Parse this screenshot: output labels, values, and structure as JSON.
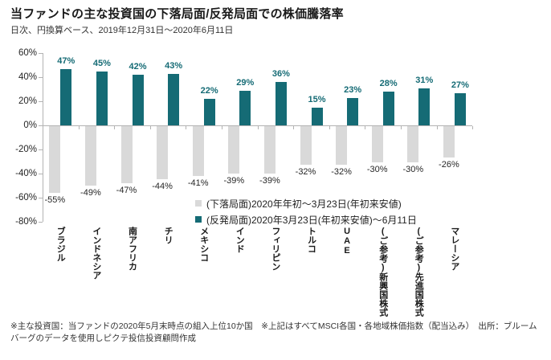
{
  "header": {
    "title": "当ファンドの主な投資国の下落局面/反発局面での株価騰落率",
    "subtitle": "日次、円換算ベース、2019年12月31日～2020年6月11日"
  },
  "chart_data": {
    "type": "bar",
    "categories": [
      "ブラジル",
      "インドネシア",
      "南アフリカ",
      "チリ",
      "メキシコ",
      "インド",
      "フィリピン",
      "トルコ",
      "UAE",
      "(ご参考)新興国株式",
      "(ご参考)先進国株式",
      "マレーシア"
    ],
    "series": [
      {
        "name": "(下落局面)2020年年初～3月23日(年初来安値)",
        "color": "#d9d9d9",
        "values": [
          -55,
          -49,
          -47,
          -44,
          -41,
          -39,
          -39,
          -32,
          -32,
          -30,
          -30,
          -26
        ]
      },
      {
        "name": "(反発局面)2020年3月23日(年初来安値)～6月11日",
        "color": "#156b75",
        "values": [
          47,
          45,
          42,
          43,
          22,
          29,
          36,
          15,
          23,
          28,
          31,
          27
        ]
      }
    ],
    "title": "当ファンドの主な投資国の下落局面/反発局面での株価騰落率",
    "xlabel": "",
    "ylabel": "",
    "ylim": [
      -80,
      60
    ],
    "ytick_step": 20,
    "ytick_suffix": "%",
    "grid": false,
    "legend_position": "inside-bottom-right"
  },
  "colors": {
    "rebound_teal": "#156b75",
    "decline_gray": "#d9d9d9",
    "axis_gray": "#b3b3b3",
    "negative_label": "#262626"
  },
  "footnote": "※主な投資国：当ファンドの2020年5月末時点の組入上位10か国　※上記はすべてMSCI各国・各地域株価指数（配当込み）　出所：ブルームバーグのデータを使用しピクテ投信投資顧問作成"
}
